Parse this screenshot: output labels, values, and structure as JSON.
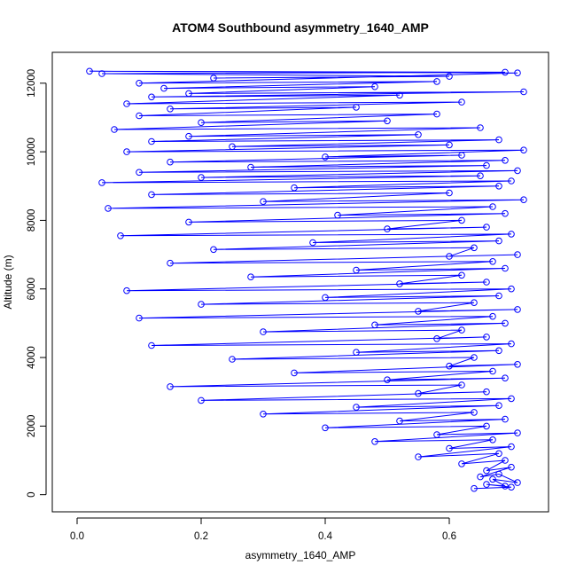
{
  "chart_data": {
    "type": "line",
    "title": "ATOM4 Southbound asymmetry_1640_AMP",
    "xlabel": "asymmetry_1640_AMP",
    "ylabel": "Altitude (m)",
    "xlim": [
      -0.04,
      0.76
    ],
    "ylim": [
      -500,
      12900
    ],
    "x_ticks": [
      0.0,
      0.2,
      0.4,
      0.6
    ],
    "x_tick_labels": [
      "0.0",
      "0.2",
      "0.4",
      "0.6"
    ],
    "y_ticks": [
      0,
      2000,
      4000,
      6000,
      8000,
      10000,
      12000
    ],
    "y_tick_labels": [
      "0",
      "2000",
      "4000",
      "6000",
      "8000",
      "10000",
      "12000"
    ],
    "grid": false,
    "legend": "none",
    "marker": "open-circle",
    "series": [
      {
        "color": "#0000ff",
        "points": [
          [
            0.64,
            180
          ],
          [
            0.7,
            220
          ],
          [
            0.66,
            300
          ],
          [
            0.69,
            250
          ],
          [
            0.67,
            450
          ],
          [
            0.71,
            350
          ],
          [
            0.68,
            600
          ],
          [
            0.65,
            520
          ],
          [
            0.7,
            800
          ],
          [
            0.66,
            700
          ],
          [
            0.69,
            1000
          ],
          [
            0.62,
            900
          ],
          [
            0.68,
            1200
          ],
          [
            0.55,
            1100
          ],
          [
            0.7,
            1400
          ],
          [
            0.6,
            1350
          ],
          [
            0.67,
            1600
          ],
          [
            0.48,
            1550
          ],
          [
            0.71,
            1800
          ],
          [
            0.58,
            1750
          ],
          [
            0.66,
            2000
          ],
          [
            0.4,
            1950
          ],
          [
            0.69,
            2200
          ],
          [
            0.52,
            2150
          ],
          [
            0.64,
            2400
          ],
          [
            0.3,
            2350
          ],
          [
            0.68,
            2600
          ],
          [
            0.45,
            2550
          ],
          [
            0.7,
            2800
          ],
          [
            0.2,
            2750
          ],
          [
            0.66,
            3000
          ],
          [
            0.55,
            2950
          ],
          [
            0.62,
            3200
          ],
          [
            0.15,
            3150
          ],
          [
            0.69,
            3400
          ],
          [
            0.5,
            3350
          ],
          [
            0.67,
            3600
          ],
          [
            0.35,
            3550
          ],
          [
            0.71,
            3800
          ],
          [
            0.6,
            3750
          ],
          [
            0.64,
            4000
          ],
          [
            0.25,
            3950
          ],
          [
            0.68,
            4200
          ],
          [
            0.45,
            4150
          ],
          [
            0.7,
            4400
          ],
          [
            0.12,
            4350
          ],
          [
            0.66,
            4600
          ],
          [
            0.58,
            4550
          ],
          [
            0.62,
            4800
          ],
          [
            0.3,
            4750
          ],
          [
            0.69,
            5000
          ],
          [
            0.48,
            4950
          ],
          [
            0.67,
            5200
          ],
          [
            0.1,
            5150
          ],
          [
            0.71,
            5400
          ],
          [
            0.55,
            5350
          ],
          [
            0.64,
            5600
          ],
          [
            0.2,
            5550
          ],
          [
            0.68,
            5800
          ],
          [
            0.4,
            5750
          ],
          [
            0.7,
            6000
          ],
          [
            0.08,
            5950
          ],
          [
            0.66,
            6200
          ],
          [
            0.52,
            6150
          ],
          [
            0.62,
            6400
          ],
          [
            0.28,
            6350
          ],
          [
            0.69,
            6600
          ],
          [
            0.45,
            6550
          ],
          [
            0.67,
            6800
          ],
          [
            0.15,
            6750
          ],
          [
            0.71,
            7000
          ],
          [
            0.6,
            6950
          ],
          [
            0.64,
            7200
          ],
          [
            0.22,
            7150
          ],
          [
            0.68,
            7400
          ],
          [
            0.38,
            7350
          ],
          [
            0.7,
            7600
          ],
          [
            0.07,
            7550
          ],
          [
            0.66,
            7800
          ],
          [
            0.5,
            7750
          ],
          [
            0.62,
            8000
          ],
          [
            0.18,
            7950
          ],
          [
            0.69,
            8200
          ],
          [
            0.42,
            8150
          ],
          [
            0.67,
            8400
          ],
          [
            0.05,
            8350
          ],
          [
            0.72,
            8600
          ],
          [
            0.3,
            8550
          ],
          [
            0.6,
            8800
          ],
          [
            0.12,
            8750
          ],
          [
            0.68,
            9000
          ],
          [
            0.35,
            8950
          ],
          [
            0.7,
            9150
          ],
          [
            0.04,
            9100
          ],
          [
            0.65,
            9300
          ],
          [
            0.2,
            9250
          ],
          [
            0.71,
            9450
          ],
          [
            0.1,
            9400
          ],
          [
            0.66,
            9600
          ],
          [
            0.28,
            9550
          ],
          [
            0.69,
            9750
          ],
          [
            0.15,
            9700
          ],
          [
            0.62,
            9900
          ],
          [
            0.4,
            9850
          ],
          [
            0.72,
            10050
          ],
          [
            0.08,
            10000
          ],
          [
            0.6,
            10200
          ],
          [
            0.25,
            10150
          ],
          [
            0.68,
            10350
          ],
          [
            0.12,
            10300
          ],
          [
            0.55,
            10500
          ],
          [
            0.18,
            10450
          ],
          [
            0.65,
            10700
          ],
          [
            0.06,
            10650
          ],
          [
            0.5,
            10900
          ],
          [
            0.2,
            10850
          ],
          [
            0.58,
            11100
          ],
          [
            0.1,
            11050
          ],
          [
            0.45,
            11300
          ],
          [
            0.15,
            11250
          ],
          [
            0.62,
            11450
          ],
          [
            0.08,
            11400
          ],
          [
            0.52,
            11650
          ],
          [
            0.12,
            11600
          ],
          [
            0.72,
            11750
          ],
          [
            0.18,
            11700
          ],
          [
            0.48,
            11900
          ],
          [
            0.14,
            11850
          ],
          [
            0.58,
            12050
          ],
          [
            0.1,
            12000
          ],
          [
            0.71,
            12300
          ],
          [
            0.02,
            12350
          ],
          [
            0.69,
            12320
          ],
          [
            0.04,
            12280
          ],
          [
            0.6,
            12200
          ],
          [
            0.22,
            12150
          ]
        ]
      }
    ]
  }
}
